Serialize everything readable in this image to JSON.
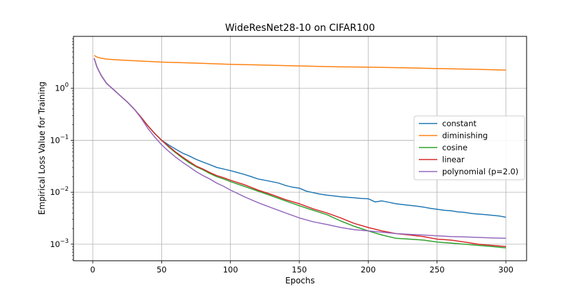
{
  "chart_data": {
    "type": "line",
    "title": "WideResNet28-10 on CIFAR100",
    "xlabel": "Epochs",
    "ylabel": "Empirical Loss Value for Training",
    "xlim": [
      -14,
      315
    ],
    "ylim": [
      0.00048,
      10
    ],
    "yscale": "log",
    "grid": true,
    "legend_position": "center-right",
    "x_ticks": [
      0,
      50,
      100,
      150,
      200,
      250,
      300
    ],
    "y_ticks": [
      {
        "value": 1,
        "base": "10",
        "exp": "0"
      },
      {
        "value": 0.1,
        "base": "10",
        "exp": "−1"
      },
      {
        "value": 0.01,
        "base": "10",
        "exp": "−2"
      },
      {
        "value": 0.001,
        "base": "10",
        "exp": "−3"
      }
    ],
    "series": [
      {
        "name": "constant",
        "color": "#1f77b4",
        "x": [
          1,
          3,
          6,
          10,
          15,
          20,
          25,
          30,
          35,
          40,
          45,
          50,
          55,
          60,
          65,
          70,
          75,
          80,
          85,
          90,
          95,
          100,
          105,
          110,
          115,
          120,
          125,
          130,
          135,
          140,
          145,
          150,
          155,
          160,
          165,
          170,
          175,
          180,
          185,
          190,
          195,
          200,
          205,
          210,
          215,
          220,
          225,
          230,
          235,
          240,
          245,
          250,
          255,
          260,
          265,
          270,
          275,
          280,
          285,
          290,
          295,
          300
        ],
        "values": [
          3.8,
          2.6,
          1.8,
          1.25,
          0.95,
          0.72,
          0.55,
          0.4,
          0.28,
          0.19,
          0.135,
          0.1,
          0.082,
          0.068,
          0.057,
          0.05,
          0.043,
          0.038,
          0.034,
          0.03,
          0.028,
          0.026,
          0.024,
          0.022,
          0.02,
          0.018,
          0.017,
          0.016,
          0.015,
          0.0135,
          0.0125,
          0.012,
          0.0105,
          0.0098,
          0.0092,
          0.0088,
          0.0085,
          0.0082,
          0.008,
          0.0078,
          0.0076,
          0.0075,
          0.0065,
          0.0068,
          0.0064,
          0.006,
          0.0058,
          0.0056,
          0.0054,
          0.0052,
          0.0049,
          0.0047,
          0.0045,
          0.0044,
          0.0042,
          0.0041,
          0.0039,
          0.0038,
          0.0037,
          0.0036,
          0.0035,
          0.0033
        ]
      },
      {
        "name": "diminishing",
        "color": "#ff7f0e",
        "x": [
          1,
          3,
          6,
          10,
          20,
          30,
          50,
          75,
          100,
          125,
          150,
          175,
          200,
          225,
          250,
          275,
          300
        ],
        "values": [
          4.3,
          4.0,
          3.8,
          3.65,
          3.5,
          3.4,
          3.2,
          3.05,
          2.9,
          2.8,
          2.7,
          2.6,
          2.55,
          2.48,
          2.4,
          2.33,
          2.25
        ]
      },
      {
        "name": "cosine",
        "color": "#2ca02c",
        "x": [
          1,
          3,
          6,
          10,
          15,
          20,
          25,
          30,
          35,
          40,
          45,
          50,
          55,
          60,
          65,
          70,
          75,
          80,
          85,
          90,
          95,
          100,
          110,
          120,
          130,
          140,
          150,
          160,
          170,
          180,
          190,
          200,
          210,
          220,
          230,
          240,
          250,
          260,
          270,
          280,
          290,
          300
        ],
        "values": [
          3.8,
          2.6,
          1.8,
          1.25,
          0.95,
          0.72,
          0.55,
          0.4,
          0.28,
          0.19,
          0.135,
          0.1,
          0.075,
          0.058,
          0.046,
          0.037,
          0.031,
          0.027,
          0.023,
          0.02,
          0.018,
          0.016,
          0.013,
          0.0105,
          0.0085,
          0.0068,
          0.0055,
          0.0045,
          0.0037,
          0.0028,
          0.0022,
          0.0018,
          0.0015,
          0.0013,
          0.00125,
          0.0012,
          0.0011,
          0.00105,
          0.001,
          0.00095,
          0.0009,
          0.00085
        ]
      },
      {
        "name": "linear",
        "color": "#d62728",
        "x": [
          1,
          3,
          6,
          10,
          15,
          20,
          25,
          30,
          35,
          40,
          45,
          50,
          55,
          60,
          65,
          70,
          75,
          80,
          85,
          90,
          95,
          100,
          110,
          120,
          130,
          140,
          150,
          160,
          170,
          180,
          190,
          200,
          210,
          220,
          230,
          240,
          250,
          260,
          270,
          280,
          290,
          300
        ],
        "values": [
          3.8,
          2.6,
          1.8,
          1.25,
          0.95,
          0.72,
          0.55,
          0.4,
          0.28,
          0.19,
          0.135,
          0.1,
          0.077,
          0.06,
          0.048,
          0.039,
          0.032,
          0.028,
          0.024,
          0.021,
          0.019,
          0.017,
          0.014,
          0.011,
          0.009,
          0.0072,
          0.006,
          0.0048,
          0.004,
          0.0032,
          0.0025,
          0.0021,
          0.0018,
          0.0016,
          0.0015,
          0.0014,
          0.00125,
          0.0012,
          0.0011,
          0.001,
          0.00095,
          0.0009
        ]
      },
      {
        "name": "polynomial (p=2.0)",
        "color": "#9467bd",
        "x": [
          1,
          3,
          6,
          10,
          15,
          20,
          25,
          30,
          35,
          40,
          45,
          50,
          55,
          60,
          65,
          70,
          75,
          80,
          85,
          90,
          95,
          100,
          110,
          120,
          130,
          140,
          150,
          160,
          170,
          180,
          190,
          200,
          210,
          220,
          230,
          240,
          250,
          260,
          270,
          280,
          290,
          300
        ],
        "values": [
          3.8,
          2.6,
          1.8,
          1.25,
          0.95,
          0.72,
          0.55,
          0.4,
          0.27,
          0.17,
          0.115,
          0.082,
          0.062,
          0.048,
          0.038,
          0.031,
          0.025,
          0.021,
          0.018,
          0.015,
          0.013,
          0.011,
          0.0082,
          0.0063,
          0.005,
          0.004,
          0.0032,
          0.0027,
          0.0024,
          0.0021,
          0.0019,
          0.0018,
          0.0017,
          0.0016,
          0.00155,
          0.0015,
          0.00145,
          0.0014,
          0.00138,
          0.00135,
          0.00132,
          0.0013
        ]
      }
    ]
  }
}
